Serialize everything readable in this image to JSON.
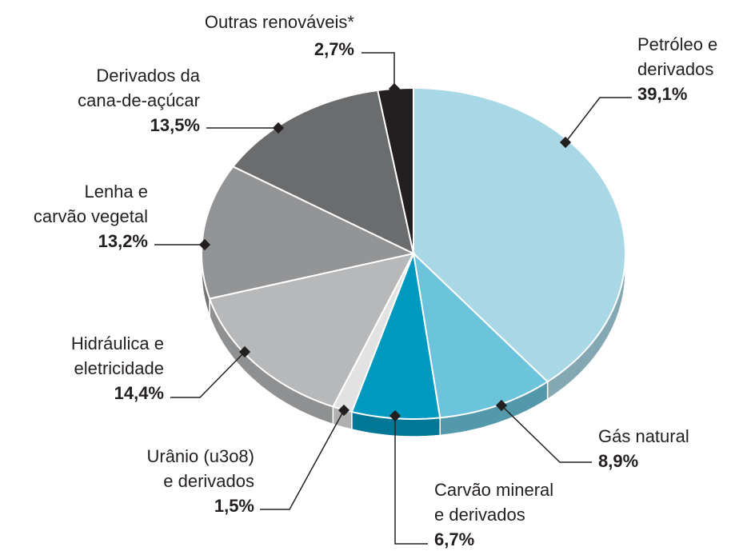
{
  "chart_data": {
    "type": "pie",
    "categories": [
      "Petróleo e\nderivados",
      "Gás natural",
      "Carvão mineral\ne derivados",
      "Urânio (u3o8)\ne derivados",
      "Hidráulica e\neletricidade",
      "Lenha e\ncarvão vegetal",
      "Derivados da\ncana-de-açúcar",
      "Outras renováveis*"
    ],
    "values": [
      39.1,
      8.9,
      6.7,
      1.5,
      14.4,
      13.2,
      13.5,
      2.7
    ],
    "value_labels": [
      "39,1%",
      "8,9%",
      "6,7%",
      "1,5%",
      "14,4%",
      "13,2%",
      "13,5%",
      "2,7%"
    ],
    "colors": [
      "#a8d8e6",
      "#6cc3dc",
      "#0099bf",
      "#e2e2e2",
      "#b7b8ba",
      "#939496",
      "#6b6c6e",
      "#231f20"
    ]
  }
}
